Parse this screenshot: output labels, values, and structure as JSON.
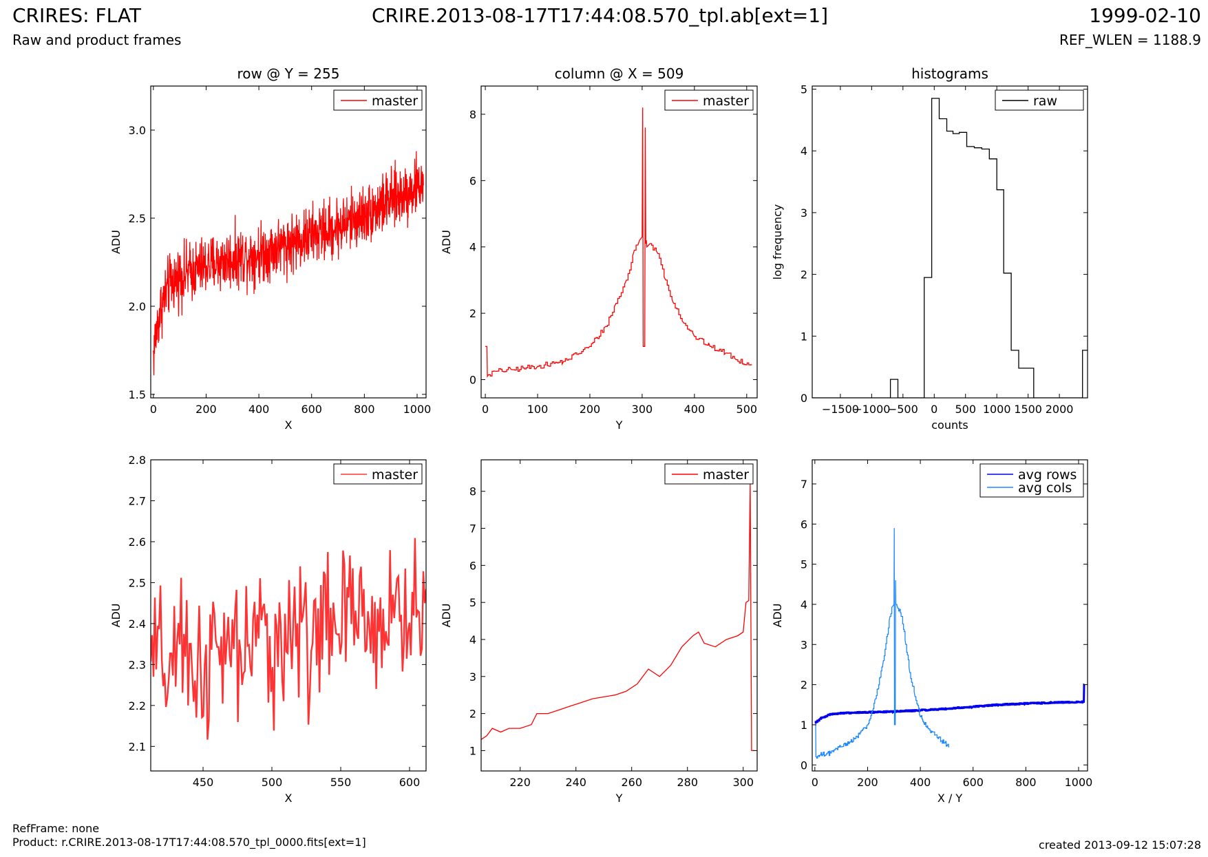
{
  "header": {
    "title_left": "CRIRES: FLAT",
    "title_center": "CRIRE.2013-08-17T17:44:08.570_tpl.ab[ext=1]",
    "title_right": "1999-02-10",
    "subtitle_left": "Raw and product frames",
    "subtitle_right": "REF_WLEN = 1188.9"
  },
  "footer": {
    "refframe": "RefFrame: none",
    "product": "Product: r.CRIRE.2013-08-17T17:44:08.570_tpl_0000.fits[ext=1]",
    "created": "created 2013-09-12 15:07:28"
  },
  "chart_data": [
    {
      "type": "line",
      "title": "row @ Y = 255",
      "xlabel": "X",
      "ylabel": "ADU",
      "xlim": [
        -10,
        1034
      ],
      "ylim": [
        1.48,
        3.25
      ],
      "xticks": [
        0,
        200,
        400,
        600,
        800,
        1000
      ],
      "yticks": [
        1.5,
        2.0,
        2.5,
        3.0
      ],
      "ytick_labels": [
        "1.5",
        "2.0",
        "2.5",
        "3.0"
      ],
      "legend": "top-right",
      "series": [
        {
          "name": "master",
          "color": "#ff0000",
          "trend_x": [
            0,
            10,
            30,
            60,
            100,
            200,
            300,
            400,
            500,
            600,
            700,
            800,
            900,
            1024
          ],
          "trend_y": [
            1.72,
            1.85,
            2.0,
            2.12,
            2.17,
            2.23,
            2.27,
            2.3,
            2.35,
            2.4,
            2.45,
            2.52,
            2.6,
            2.7
          ],
          "noise": 0.12,
          "n": 1024
        }
      ]
    },
    {
      "type": "line",
      "title": "column @ X = 509",
      "xlabel": "Y",
      "ylabel": "ADU",
      "xlim": [
        -8,
        520
      ],
      "ylim": [
        -0.55,
        8.85
      ],
      "xticks": [
        0,
        100,
        200,
        300,
        400,
        500
      ],
      "yticks": [
        0,
        2,
        4,
        6,
        8
      ],
      "legend": "top-right",
      "series": [
        {
          "name": "master",
          "color": "#ff0000",
          "x": [
            0,
            3,
            4,
            6,
            20,
            50,
            100,
            150,
            200,
            230,
            250,
            270,
            285,
            295,
            300,
            301,
            302,
            303,
            305,
            306,
            307,
            308,
            309,
            315,
            330,
            345,
            360,
            380,
            400,
            430,
            460,
            480,
            510
          ],
          "y": [
            1.0,
            1.0,
            0.1,
            0.15,
            0.25,
            0.3,
            0.4,
            0.55,
            1.0,
            1.6,
            2.3,
            3.0,
            3.9,
            4.2,
            4.3,
            8.2,
            1.0,
            1.0,
            1.0,
            7.6,
            4.1,
            4.2,
            4.0,
            4.1,
            3.8,
            3.0,
            2.3,
            1.7,
            1.3,
            1.0,
            0.8,
            0.6,
            0.45
          ],
          "noise": 0.08
        }
      ]
    },
    {
      "type": "line",
      "title": "histograms",
      "xlabel": "counts",
      "ylabel": "log frequency",
      "xlim": [
        -1950,
        2450
      ],
      "ylim": [
        0,
        5.05
      ],
      "xticks": [
        -1500,
        -1000,
        -500,
        0,
        500,
        1000,
        1500,
        2000
      ],
      "yticks": [
        0,
        1,
        2,
        3,
        4,
        5
      ],
      "legend": "top-right",
      "series": [
        {
          "name": "raw",
          "color": "#000000",
          "drawstyle": "steps",
          "edges": [
            -1950,
            -700,
            -580,
            -160,
            -40,
            80,
            200,
            300,
            400,
            520,
            640,
            760,
            880,
            1000,
            1110,
            1230,
            1350,
            1590,
            2370,
            2450
          ],
          "counts": [
            0,
            0.3,
            0,
            1.95,
            4.85,
            4.52,
            4.32,
            4.28,
            4.3,
            4.07,
            4.05,
            4.03,
            3.87,
            3.37,
            2.02,
            0.77,
            0.48,
            0,
            0.77
          ]
        }
      ]
    },
    {
      "type": "line",
      "xlabel": "X",
      "ylabel": "ADU",
      "xlim": [
        412,
        612
      ],
      "ylim": [
        2.04,
        2.8
      ],
      "xticks": [
        450,
        500,
        550,
        600
      ],
      "yticks": [
        2.1,
        2.2,
        2.3,
        2.4,
        2.5,
        2.6,
        2.7,
        2.8
      ],
      "ytick_labels": [
        "2.1",
        "2.2",
        "2.3",
        "2.4",
        "2.5",
        "2.6",
        "2.7",
        "2.8"
      ],
      "legend": "top-right",
      "series": [
        {
          "name": "master",
          "color": "#ff3333",
          "trend_x": [
            412,
            450,
            500,
            550,
            612
          ],
          "trend_y": [
            2.3,
            2.3,
            2.36,
            2.4,
            2.43
          ],
          "noise": 0.13,
          "n": 200
        }
      ]
    },
    {
      "type": "line",
      "xlabel": "Y",
      "ylabel": "ADU",
      "xlim": [
        206,
        305
      ],
      "ylim": [
        0.45,
        8.85
      ],
      "xticks": [
        220,
        240,
        260,
        280,
        300
      ],
      "yticks": [
        1,
        2,
        3,
        4,
        5,
        6,
        7,
        8
      ],
      "legend": "top-right",
      "series": [
        {
          "name": "master",
          "color": "#ff0000",
          "x": [
            206,
            208,
            210,
            213,
            216,
            220,
            224,
            226,
            230,
            234,
            238,
            242,
            246,
            250,
            254,
            258,
            262,
            266,
            270,
            274,
            278,
            282,
            284,
            286,
            290,
            294,
            298,
            300,
            301,
            302,
            302.5,
            303,
            304
          ],
          "y": [
            1.3,
            1.4,
            1.6,
            1.5,
            1.6,
            1.6,
            1.7,
            2.0,
            2.0,
            2.1,
            2.2,
            2.3,
            2.4,
            2.45,
            2.5,
            2.6,
            2.8,
            3.2,
            3.0,
            3.3,
            3.8,
            4.1,
            4.2,
            3.9,
            3.8,
            4.0,
            4.1,
            4.2,
            5.0,
            5.05,
            8.2,
            1.0,
            1.0
          ],
          "noise": 0.06
        }
      ]
    },
    {
      "type": "line",
      "xlabel": "X / Y",
      "ylabel": "ADU",
      "xlim": [
        -10,
        1034
      ],
      "ylim": [
        -0.15,
        7.6
      ],
      "xticks": [
        0,
        200,
        400,
        600,
        800,
        1000
      ],
      "yticks": [
        0,
        1,
        2,
        3,
        4,
        5,
        6,
        7
      ],
      "legend": "top-right",
      "series": [
        {
          "name": "avg rows",
          "color": "#0000ee",
          "x": [
            0,
            20,
            50,
            80,
            150,
            300,
            400,
            500,
            600,
            700,
            800,
            900,
            1020,
            1021,
            1022
          ],
          "y": [
            1.05,
            1.15,
            1.25,
            1.28,
            1.3,
            1.33,
            1.36,
            1.4,
            1.45,
            1.5,
            1.53,
            1.55,
            1.57,
            2.0,
            2.0
          ],
          "noise": 0.015
        },
        {
          "name": "avg cols",
          "color": "#1e88ff",
          "x": [
            0,
            3,
            4,
            20,
            60,
            100,
            150,
            200,
            230,
            260,
            285,
            295,
            300,
            301,
            302,
            303,
            305,
            306,
            307,
            315,
            330,
            345,
            360,
            380,
            400,
            430,
            460,
            480,
            510
          ],
          "y": [
            1.0,
            1.0,
            0.2,
            0.25,
            0.3,
            0.45,
            0.65,
            1.0,
            1.65,
            2.6,
            3.7,
            3.95,
            4.0,
            5.9,
            1.0,
            1.0,
            1.0,
            4.6,
            4.0,
            3.9,
            3.7,
            3.0,
            2.3,
            1.7,
            1.2,
            0.9,
            0.75,
            0.6,
            0.45
          ],
          "noise": 0.06
        }
      ]
    }
  ]
}
